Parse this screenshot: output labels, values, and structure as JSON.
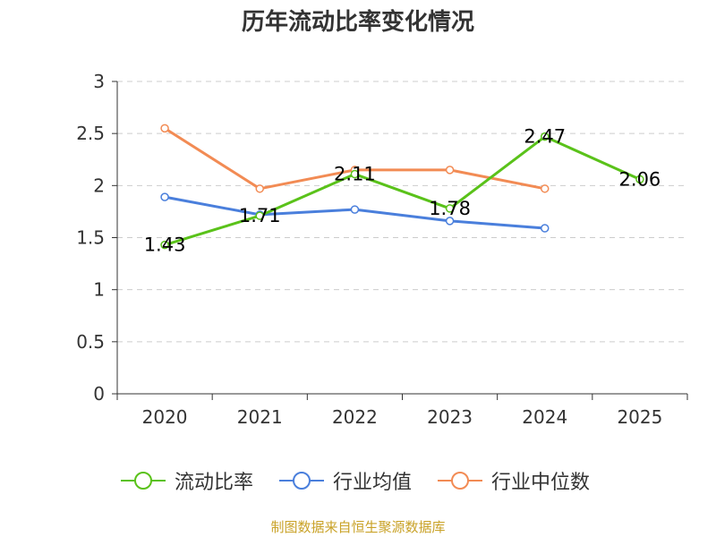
{
  "colors": {
    "current_ratio": "#5ac21a",
    "industry_avg": "#4a7fdc",
    "industry_median": "#f28b54",
    "grid": "#cccccc",
    "axis": "#333333",
    "source": "#c9a227"
  },
  "source_note": "制图数据来自恒生聚源数据库",
  "chart_data": {
    "type": "line",
    "title": "历年流动比率变化情况",
    "xlabel": "",
    "ylabel": "",
    "categories": [
      "2020",
      "2021",
      "2022",
      "2023",
      "2024",
      "2025"
    ],
    "ylim": [
      0,
      3
    ],
    "yticks": [
      0,
      0.5,
      1,
      1.5,
      2,
      2.5,
      3
    ],
    "ytick_labels": [
      "0",
      "0.5",
      "1",
      "1.5",
      "2",
      "2.5",
      "3"
    ],
    "grid": true,
    "legend_position": "bottom",
    "series": [
      {
        "key": "current_ratio",
        "name": "流动比率",
        "values": [
          1.43,
          1.71,
          2.11,
          1.78,
          2.47,
          2.06
        ],
        "labels": [
          "1.43",
          "1.71",
          "2.11",
          "1.78",
          "2.47",
          "2.06"
        ],
        "show_labels": true
      },
      {
        "key": "industry_avg",
        "name": "行业均值",
        "values": [
          1.89,
          1.72,
          1.77,
          1.66,
          1.59,
          null
        ],
        "show_labels": false
      },
      {
        "key": "industry_median",
        "name": "行业中位数",
        "values": [
          2.55,
          1.97,
          2.15,
          2.15,
          1.97,
          null
        ],
        "show_labels": false
      }
    ]
  }
}
